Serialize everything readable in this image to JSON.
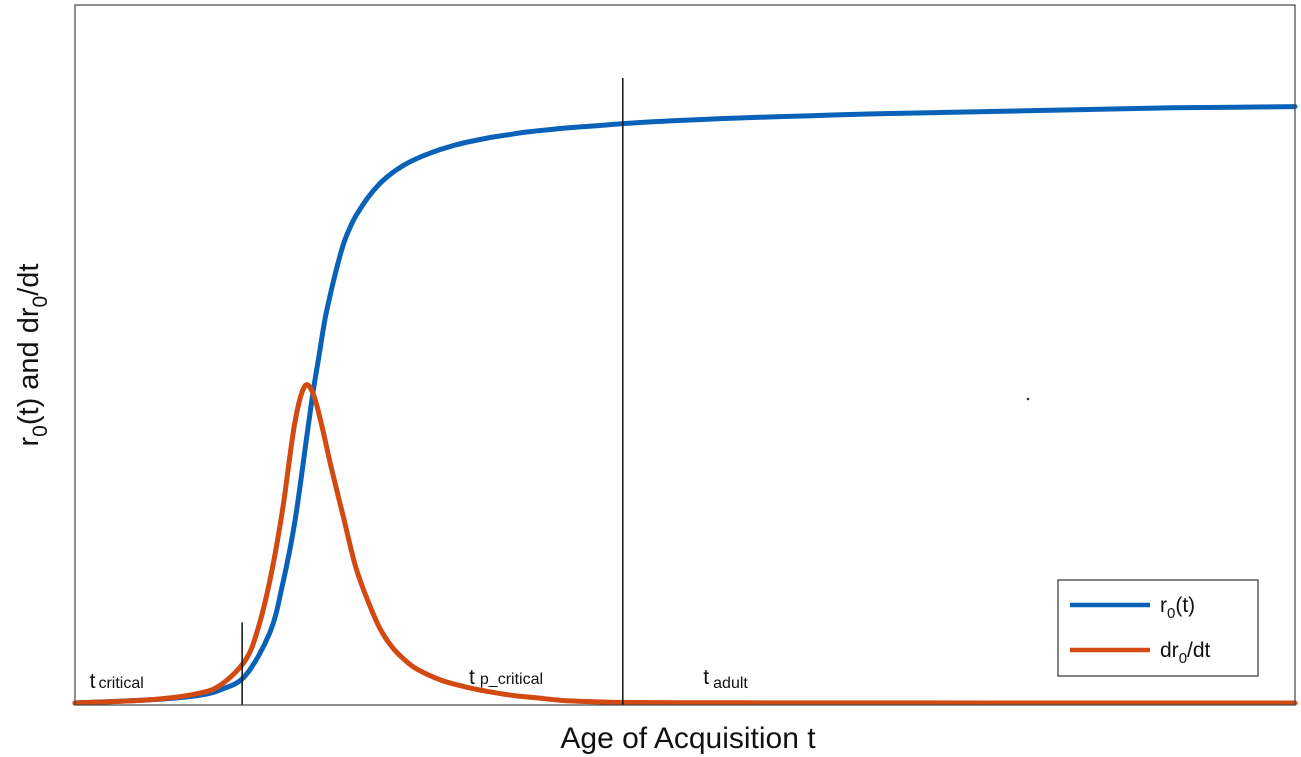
{
  "chart_data": {
    "type": "line",
    "xlabel": "Age of Acquisition t",
    "ylabel": {
      "base": "r",
      "sub1": "0",
      "mid": "(t) and dr",
      "sub2": "0",
      "tail": "/dt"
    },
    "xlim": [
      0,
      100
    ],
    "ylim": [
      0,
      1
    ],
    "grid": false,
    "axis_ticks": false,
    "legend_position": "bottom-right",
    "series": [
      {
        "key": "r0",
        "name": {
          "base": "r",
          "sub": "0",
          "tail": "(t)"
        },
        "color": "#0a62b8",
        "x": [
          0,
          6,
          10,
          12,
          14,
          16,
          17,
          18,
          19,
          19.5,
          20,
          20.5,
          21,
          21.5,
          22,
          22.5,
          23,
          24,
          25,
          26,
          27,
          28,
          29,
          30,
          31,
          32,
          33,
          34,
          35,
          36,
          37,
          38,
          39,
          40,
          42,
          44,
          46,
          48,
          50,
          55,
          60,
          65,
          70,
          75,
          80,
          85,
          90,
          95,
          100
        ],
        "values": [
          0.0,
          0.005,
          0.012,
          0.022,
          0.045,
          0.115,
          0.19,
          0.29,
          0.43,
          0.5,
          0.56,
          0.62,
          0.665,
          0.705,
          0.74,
          0.765,
          0.785,
          0.815,
          0.838,
          0.855,
          0.868,
          0.878,
          0.886,
          0.893,
          0.899,
          0.904,
          0.908,
          0.912,
          0.915,
          0.918,
          0.921,
          0.923,
          0.925,
          0.927,
          0.93,
          0.933,
          0.936,
          0.938,
          0.94,
          0.944,
          0.947,
          0.95,
          0.952,
          0.954,
          0.956,
          0.958,
          0.96,
          0.961,
          0.962
        ]
      },
      {
        "key": "dr0",
        "name": {
          "base": "dr",
          "sub": "0",
          "tail": "/dt"
        },
        "color": "#d24a12",
        "x": [
          0,
          6,
          10,
          12,
          14,
          15,
          16,
          17,
          18,
          18.8,
          19.5,
          20.2,
          21,
          22,
          23,
          24,
          25,
          26,
          27,
          28,
          30,
          32,
          34,
          36,
          38,
          40,
          42,
          45,
          50,
          55,
          60,
          70,
          80,
          90,
          100
        ],
        "values": [
          0.0,
          0.005,
          0.015,
          0.03,
          0.07,
          0.12,
          0.2,
          0.31,
          0.45,
          0.51,
          0.5,
          0.45,
          0.38,
          0.3,
          0.22,
          0.165,
          0.12,
          0.09,
          0.07,
          0.055,
          0.037,
          0.026,
          0.018,
          0.012,
          0.008,
          0.004,
          0.0025,
          0.001,
          0.0005,
          0.0003,
          0.0002,
          0.0001,
          0.0,
          0.0,
          0.0
        ]
      }
    ],
    "markers": [
      {
        "key": "t_critical",
        "x": 13.7,
        "y_top": 0.13,
        "label": {
          "base": "t",
          "sub": "critical"
        },
        "label_x": 1.2
      },
      {
        "key": "t_p_critical",
        "x": 44.9,
        "y_top": 1.0,
        "label": {
          "base": "t",
          "sub": "p_critical"
        },
        "label_x": 32.3
      },
      {
        "key": "t_adult",
        "label": {
          "base": "t",
          "sub": "adult"
        },
        "label_x": 51.5
      }
    ]
  }
}
